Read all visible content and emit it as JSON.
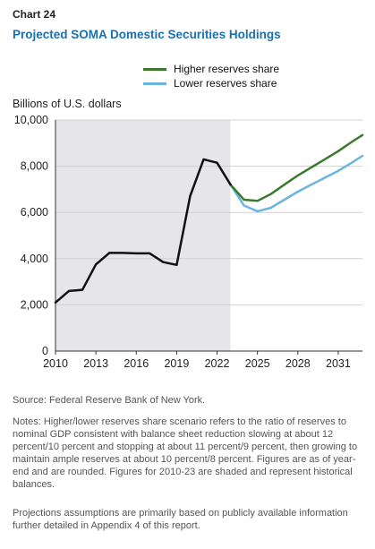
{
  "header": {
    "chart_number": "Chart 24",
    "title": "Projected SOMA Domestic Securities Holdings"
  },
  "colors": {
    "title": "#1a6fb0",
    "higher": "#3a7a2f",
    "lower": "#6bb3e0",
    "historical": "#111111",
    "shade": "#e6e6e8"
  },
  "chart_data": {
    "type": "line",
    "ylabel": "Billions of U.S. dollars",
    "xlim": [
      2010,
      2032.8
    ],
    "ylim": [
      0,
      10000
    ],
    "xticks": [
      "2010",
      "2013",
      "2016",
      "2019",
      "2022",
      "2025",
      "2028",
      "2031"
    ],
    "yticks": [
      "0",
      "2,000",
      "4,000",
      "6,000",
      "8,000",
      "10,000"
    ],
    "shaded_region": [
      2010,
      2023
    ],
    "legend": {
      "placement": "top-center"
    },
    "series": [
      {
        "name": "",
        "x": [
          2010,
          2011,
          2012,
          2013,
          2014,
          2015,
          2016,
          2017,
          2018,
          2019,
          2020,
          2021,
          2022,
          2023
        ],
        "y": [
          2100,
          2600,
          2650,
          3750,
          4250,
          4250,
          4230,
          4230,
          3850,
          3730,
          6700,
          8300,
          8150,
          7200
        ]
      },
      {
        "name": "Higher reserves share",
        "x": [
          2023,
          2024,
          2025,
          2026,
          2027,
          2028,
          2029,
          2030,
          2031,
          2032,
          2032.8
        ],
        "y": [
          7200,
          6550,
          6500,
          6800,
          7200,
          7600,
          7950,
          8300,
          8650,
          9050,
          9350
        ]
      },
      {
        "name": "Lower reserves share",
        "x": [
          2023,
          2024,
          2025,
          2026,
          2027,
          2028,
          2029,
          2030,
          2031,
          2032,
          2032.8
        ],
        "y": [
          7200,
          6300,
          6050,
          6200,
          6550,
          6900,
          7200,
          7500,
          7800,
          8150,
          8450
        ]
      }
    ]
  },
  "footer": {
    "source": "Source: Federal Reserve Bank of New York.",
    "notes": "Notes: Higher/lower reserves share scenario refers to the ratio of reserves to nominal GDP consistent with balance sheet reduction slowing at about 12 percent/10 percent and stopping at about 11 percent/9 percent, then growing to maintain ample reserves at about 10 percent/8 percent. Figures are as of year-end and are rounded. Figures for 2010-23 are shaded and represent historical balances.",
    "projections": "Projections assumptions are primarily based on publicly available information further detailed in Appendix 4 of this report."
  }
}
